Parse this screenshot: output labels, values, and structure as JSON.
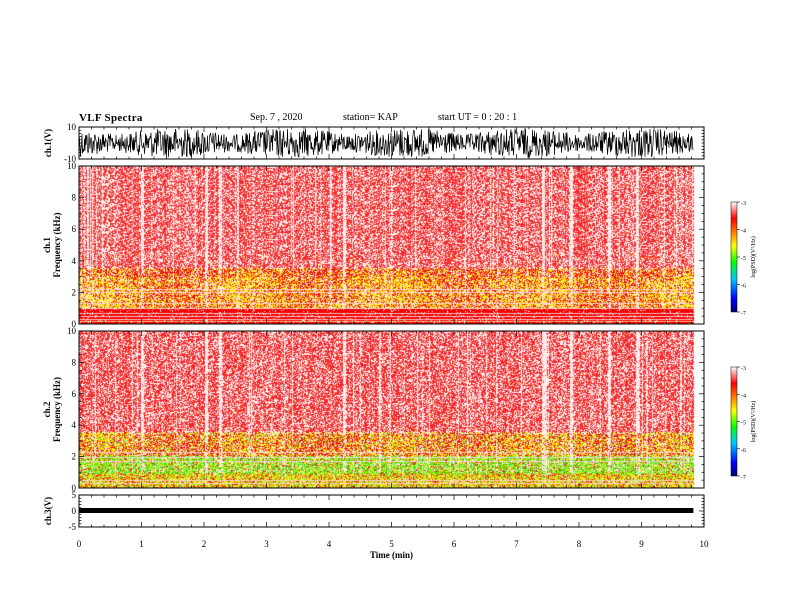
{
  "header": {
    "title": "VLF Spectra",
    "date": "Sep. 7  , 2020",
    "station": "station= KAP",
    "start": "start  UT =   0  : 20 : 1"
  },
  "chart_data": [
    {
      "type": "line",
      "name": "channel-1-waveform",
      "ylabel": "ch.1(V)",
      "yticks": [
        10,
        -10
      ],
      "ylim": [
        -10,
        10
      ],
      "xlim": [
        0,
        10
      ],
      "data_end": 9.83,
      "color": "#000000"
    },
    {
      "type": "heatmap",
      "name": "channel-1-spectrogram",
      "ylabel": "ch.1\nFrequency (kHz)",
      "ylim": [
        0,
        10
      ],
      "yticks": [
        0,
        2,
        4,
        6,
        8,
        10
      ],
      "xlim": [
        0,
        10
      ],
      "data_end": 9.83,
      "colorbar": {
        "label": "log(PSD)(V²/Hz)",
        "ticks": [
          -3,
          -4,
          -5,
          -6,
          -7
        ],
        "range": [
          -7,
          -3
        ]
      },
      "bands": [
        {
          "from_khz": 0,
          "to_khz": 1,
          "dominant": "red"
        },
        {
          "from_khz": 1,
          "to_khz": 3.5,
          "dominant": "red-yellow"
        },
        {
          "from_khz": 3.5,
          "to_khz": 10,
          "dominant": "red-white"
        }
      ]
    },
    {
      "type": "heatmap",
      "name": "channel-2-spectrogram",
      "ylabel": "ch.2\nFrequency (kHz)",
      "ylim": [
        0,
        10
      ],
      "yticks": [
        0,
        2,
        4,
        6,
        8,
        10
      ],
      "xlim": [
        0,
        10
      ],
      "data_end": 9.83,
      "colorbar": {
        "label": "log(PSD)(V²/Hz)",
        "ticks": [
          -3,
          -4,
          -5,
          -6,
          -7
        ],
        "range": [
          -7,
          -3
        ]
      },
      "bands": [
        {
          "from_khz": 0,
          "to_khz": 1,
          "dominant": "green-yellow"
        },
        {
          "from_khz": 1,
          "to_khz": 2,
          "dominant": "green"
        },
        {
          "from_khz": 2,
          "to_khz": 3.5,
          "dominant": "red-yellow"
        },
        {
          "from_khz": 3.5,
          "to_khz": 10,
          "dominant": "red-white"
        }
      ]
    },
    {
      "type": "line",
      "name": "channel-3-waveform",
      "ylabel": "ch.3(V)",
      "yticks": [
        5,
        0,
        -5
      ],
      "ylim": [
        -5,
        5
      ],
      "xlim": [
        0,
        10
      ],
      "data_end": 9.83,
      "level": 0,
      "color": "#000000"
    },
    {
      "type": "axis",
      "name": "time-axis",
      "xlabel": "Time (min)",
      "xticks": [
        0,
        1,
        2,
        3,
        4,
        5,
        6,
        7,
        8,
        9,
        10
      ],
      "xlim": [
        0,
        10
      ]
    }
  ]
}
